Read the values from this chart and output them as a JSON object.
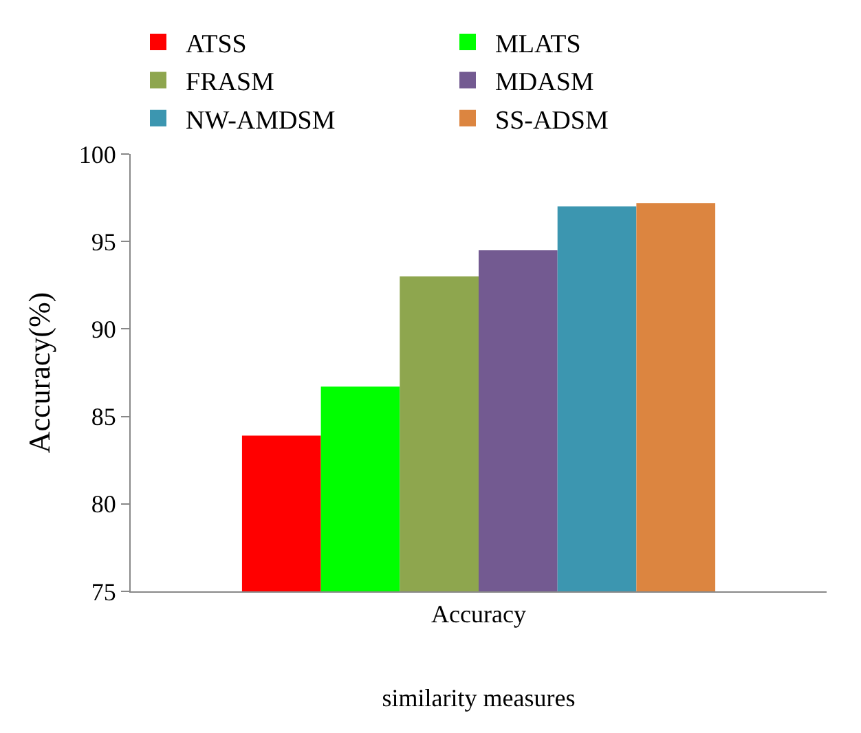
{
  "chart_data": {
    "type": "bar",
    "xlabel": "similarity measures",
    "ylabel": "Accuracy(%)",
    "categories": [
      "Accuracy"
    ],
    "series": [
      {
        "name": "ATSS",
        "color": "#ff0000",
        "values": [
          83.9
        ]
      },
      {
        "name": "MLATS",
        "color": "#00ff00",
        "values": [
          86.7
        ]
      },
      {
        "name": "FRASM",
        "color": "#8ea64e",
        "values": [
          93.0
        ]
      },
      {
        "name": "MDASM",
        "color": "#735a91",
        "values": [
          94.5
        ]
      },
      {
        "name": "NW-AMDSM",
        "color": "#3c96b0",
        "values": [
          97.0
        ]
      },
      {
        "name": "SS-ADSM",
        "color": "#dc8540",
        "values": [
          97.2
        ]
      }
    ],
    "ylim": [
      75,
      100
    ],
    "yticks": [
      75,
      80,
      85,
      90,
      95,
      100
    ],
    "grid": false,
    "legend": "top"
  }
}
